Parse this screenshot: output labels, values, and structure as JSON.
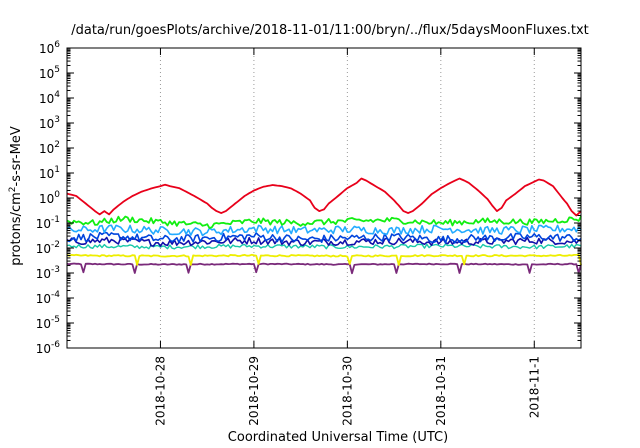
{
  "chart_data": {
    "type": "line",
    "title": "/data/run/goesPlots/archive/2018-11-01/11:00/bryn/../flux/5daysMoonFluxes.txt",
    "xlabel": "Coordinated Universal Time (UTC)",
    "ylabel_parts": {
      "main": "protons/cm",
      "sup": "2",
      "rest": "-s-sr-MeV"
    },
    "x_range_days": [
      0,
      5.5
    ],
    "x_ticks": [
      {
        "label": "2018-10-28",
        "day": 1.0
      },
      {
        "label": "2018-10-29",
        "day": 2.0
      },
      {
        "label": "2018-10-30",
        "day": 3.0
      },
      {
        "label": "2018-10-31",
        "day": 4.0
      },
      {
        "label": "2018-11-1",
        "day": 5.0
      }
    ],
    "y_scale": "log",
    "y_range_exp": [
      -6,
      6
    ],
    "y_ticks": [
      {
        "base": "10",
        "exp": "-6",
        "e": -6
      },
      {
        "base": "10",
        "exp": "-5",
        "e": -5
      },
      {
        "base": "10",
        "exp": "-4",
        "e": -4
      },
      {
        "base": "10",
        "exp": "-3",
        "e": -3
      },
      {
        "base": "10",
        "exp": "-2",
        "e": -2
      },
      {
        "base": "10",
        "exp": "-1",
        "e": -1
      },
      {
        "base": "10",
        "exp": "0",
        "e": 0
      },
      {
        "base": "10",
        "exp": "1",
        "e": 1
      },
      {
        "base": "10",
        "exp": "2",
        "e": 2
      },
      {
        "base": "10",
        "exp": "3",
        "e": 3
      },
      {
        "base": "10",
        "exp": "4",
        "e": 4
      },
      {
        "base": "10",
        "exp": "5",
        "e": 5
      },
      {
        "base": "10",
        "exp": "6",
        "e": 6
      }
    ],
    "grid": "vertical-dotted",
    "legend": "none",
    "series": [
      {
        "color": "#e8001a",
        "width": 1.8,
        "noise": 0.0,
        "points": [
          [
            0,
            1.5
          ],
          [
            0.1,
            1.2
          ],
          [
            0.2,
            0.6
          ],
          [
            0.3,
            0.3
          ],
          [
            0.35,
            0.22
          ],
          [
            0.4,
            0.3
          ],
          [
            0.45,
            0.22
          ],
          [
            0.5,
            0.35
          ],
          [
            0.6,
            0.7
          ],
          [
            0.7,
            1.2
          ],
          [
            0.8,
            1.8
          ],
          [
            0.9,
            2.4
          ],
          [
            1.0,
            3.0
          ],
          [
            1.05,
            3.4
          ],
          [
            1.1,
            3.0
          ],
          [
            1.2,
            2.5
          ],
          [
            1.3,
            1.6
          ],
          [
            1.4,
            1.0
          ],
          [
            1.5,
            0.6
          ],
          [
            1.55,
            0.4
          ],
          [
            1.6,
            0.3
          ],
          [
            1.65,
            0.25
          ],
          [
            1.7,
            0.3
          ],
          [
            1.8,
            0.6
          ],
          [
            1.9,
            1.2
          ],
          [
            2.0,
            2.0
          ],
          [
            2.1,
            2.8
          ],
          [
            2.2,
            3.3
          ],
          [
            2.3,
            3.0
          ],
          [
            2.4,
            2.4
          ],
          [
            2.5,
            1.5
          ],
          [
            2.6,
            0.8
          ],
          [
            2.65,
            0.4
          ],
          [
            2.7,
            0.3
          ],
          [
            2.75,
            0.35
          ],
          [
            2.8,
            0.6
          ],
          [
            2.9,
            1.2
          ],
          [
            3.0,
            2.5
          ],
          [
            3.1,
            4.0
          ],
          [
            3.15,
            6.0
          ],
          [
            3.2,
            5.0
          ],
          [
            3.3,
            3.0
          ],
          [
            3.4,
            1.8
          ],
          [
            3.5,
            0.8
          ],
          [
            3.55,
            0.5
          ],
          [
            3.6,
            0.3
          ],
          [
            3.65,
            0.25
          ],
          [
            3.7,
            0.3
          ],
          [
            3.8,
            0.6
          ],
          [
            3.9,
            1.4
          ],
          [
            4.0,
            2.5
          ],
          [
            4.1,
            4.0
          ],
          [
            4.2,
            6.0
          ],
          [
            4.25,
            5.0
          ],
          [
            4.3,
            4.0
          ],
          [
            4.4,
            2.0
          ],
          [
            4.5,
            0.9
          ],
          [
            4.55,
            0.5
          ],
          [
            4.6,
            0.3
          ],
          [
            4.65,
            0.4
          ],
          [
            4.7,
            0.8
          ],
          [
            4.8,
            1.5
          ],
          [
            4.9,
            3.0
          ],
          [
            5.0,
            4.5
          ],
          [
            5.05,
            5.5
          ],
          [
            5.1,
            5.0
          ],
          [
            5.2,
            3.0
          ],
          [
            5.3,
            1.0
          ],
          [
            5.35,
            0.6
          ],
          [
            5.4,
            0.3
          ],
          [
            5.45,
            0.2
          ],
          [
            5.5,
            0.3
          ]
        ]
      },
      {
        "color": "#11ee11",
        "width": 1.8,
        "noise": 0.12,
        "points": [
          [
            0,
            0.12
          ],
          [
            0.3,
            0.1
          ],
          [
            0.6,
            0.15
          ],
          [
            1.0,
            0.11
          ],
          [
            1.5,
            0.08
          ],
          [
            2.0,
            0.12
          ],
          [
            2.5,
            0.1
          ],
          [
            3.0,
            0.12
          ],
          [
            3.5,
            0.13
          ],
          [
            4.0,
            0.1
          ],
          [
            4.5,
            0.12
          ],
          [
            5.0,
            0.11
          ],
          [
            5.5,
            0.15
          ]
        ]
      },
      {
        "color": "#22aaff",
        "width": 1.6,
        "noise": 0.16,
        "points": [
          [
            0,
            0.05
          ],
          [
            0.5,
            0.06
          ],
          [
            1.0,
            0.05
          ],
          [
            1.5,
            0.045
          ],
          [
            2.0,
            0.06
          ],
          [
            2.5,
            0.05
          ],
          [
            3.0,
            0.055
          ],
          [
            3.5,
            0.05
          ],
          [
            4.0,
            0.06
          ],
          [
            4.5,
            0.05
          ],
          [
            5.0,
            0.055
          ],
          [
            5.5,
            0.06
          ]
        ]
      },
      {
        "color": "#0044dd",
        "width": 1.6,
        "noise": 0.16,
        "points": [
          [
            0,
            0.025
          ],
          [
            0.5,
            0.03
          ],
          [
            1.0,
            0.022
          ],
          [
            1.5,
            0.025
          ],
          [
            2.0,
            0.03
          ],
          [
            2.5,
            0.022
          ],
          [
            3.0,
            0.025
          ],
          [
            3.5,
            0.028
          ],
          [
            4.0,
            0.022
          ],
          [
            4.5,
            0.025
          ],
          [
            5.0,
            0.028
          ],
          [
            5.5,
            0.025
          ]
        ]
      },
      {
        "color": "#1111aa",
        "width": 1.6,
        "noise": 0.14,
        "points": [
          [
            0,
            0.018
          ],
          [
            0.5,
            0.02
          ],
          [
            1.0,
            0.016
          ],
          [
            1.5,
            0.018
          ],
          [
            2.0,
            0.02
          ],
          [
            2.5,
            0.017
          ],
          [
            3.0,
            0.018
          ],
          [
            3.5,
            0.019
          ],
          [
            4.0,
            0.017
          ],
          [
            4.5,
            0.018
          ],
          [
            5.0,
            0.02
          ],
          [
            5.5,
            0.018
          ]
        ]
      },
      {
        "color": "#17c8a8",
        "width": 1.4,
        "noise": 0.08,
        "points": [
          [
            0,
            0.012
          ],
          [
            1.0,
            0.011
          ],
          [
            2.0,
            0.012
          ],
          [
            3.0,
            0.011
          ],
          [
            4.0,
            0.012
          ],
          [
            5.0,
            0.011
          ],
          [
            5.5,
            0.012
          ]
        ]
      },
      {
        "color": "#eeee00",
        "width": 1.8,
        "noise": 0.03,
        "points": [
          [
            0,
            0.005
          ],
          [
            1.0,
            0.0048
          ],
          [
            2.0,
            0.005
          ],
          [
            3.0,
            0.0048
          ],
          [
            4.0,
            0.005
          ],
          [
            5.0,
            0.0049
          ],
          [
            5.5,
            0.005
          ]
        ],
        "dips": [
          0.75,
          1.32,
          2.05,
          3.02,
          3.55,
          4.25,
          5.5
        ]
      },
      {
        "color": "#7a2a7a",
        "width": 1.8,
        "noise": 0.02,
        "points": [
          [
            0,
            0.0023
          ],
          [
            1.0,
            0.0022
          ],
          [
            2.0,
            0.0023
          ],
          [
            3.0,
            0.0022
          ],
          [
            4.0,
            0.0023
          ],
          [
            5.0,
            0.0022
          ],
          [
            5.5,
            0.0023
          ]
        ],
        "dips": [
          0.18,
          0.72,
          1.3,
          2.02,
          3.05,
          3.52,
          4.2,
          4.95,
          5.48
        ]
      }
    ]
  }
}
